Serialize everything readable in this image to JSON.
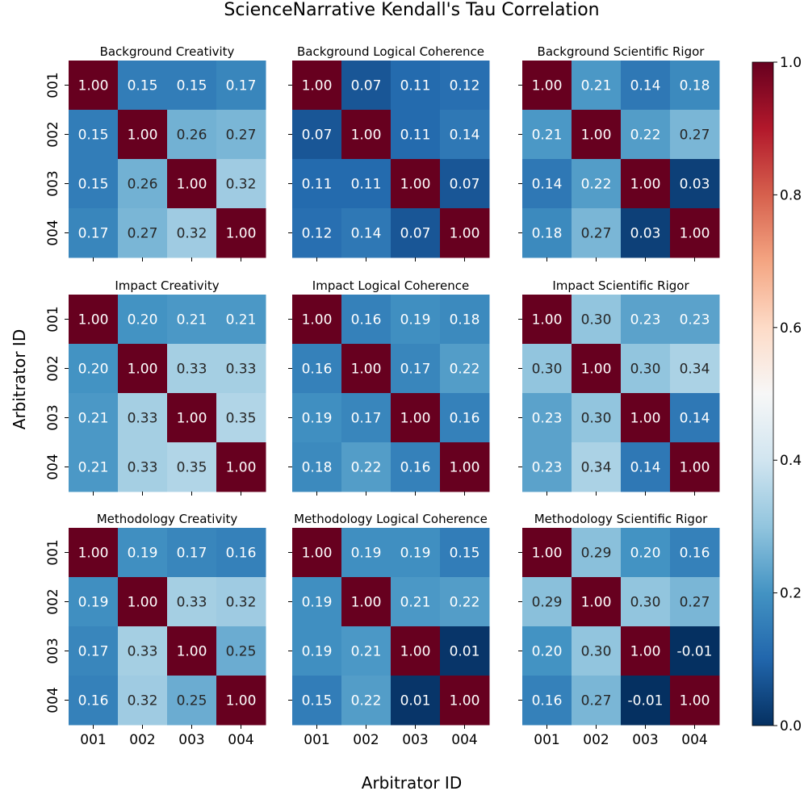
{
  "chart_data": {
    "type": "heatmap",
    "title": "ScienceNarrative Kendall's Tau Correlation",
    "xlabel": "Arbitrator ID",
    "ylabel": "Arbitrator ID",
    "tick_labels": [
      "001",
      "002",
      "003",
      "004"
    ],
    "colorbar": {
      "range": [
        0.0,
        1.0
      ],
      "ticks": [
        "0.0",
        "0.2",
        "0.4",
        "0.6",
        "0.8",
        "1.0"
      ],
      "colormap": "RdBu_r"
    },
    "panels": [
      {
        "title": "Background Creativity",
        "matrix": [
          [
            "1.00",
            "0.15",
            "0.15",
            "0.17"
          ],
          [
            "0.15",
            "1.00",
            "0.26",
            "0.27"
          ],
          [
            "0.15",
            "0.26",
            "1.00",
            "0.32"
          ],
          [
            "0.17",
            "0.27",
            "0.32",
            "1.00"
          ]
        ]
      },
      {
        "title": "Background Logical Coherence",
        "matrix": [
          [
            "1.00",
            "0.07",
            "0.11",
            "0.12"
          ],
          [
            "0.07",
            "1.00",
            "0.11",
            "0.14"
          ],
          [
            "0.11",
            "0.11",
            "1.00",
            "0.07"
          ],
          [
            "0.12",
            "0.14",
            "0.07",
            "1.00"
          ]
        ]
      },
      {
        "title": "Background Scientific Rigor",
        "matrix": [
          [
            "1.00",
            "0.21",
            "0.14",
            "0.18"
          ],
          [
            "0.21",
            "1.00",
            "0.22",
            "0.27"
          ],
          [
            "0.14",
            "0.22",
            "1.00",
            "0.03"
          ],
          [
            "0.18",
            "0.27",
            "0.03",
            "1.00"
          ]
        ]
      },
      {
        "title": "Impact Creativity",
        "matrix": [
          [
            "1.00",
            "0.20",
            "0.21",
            "0.21"
          ],
          [
            "0.20",
            "1.00",
            "0.33",
            "0.33"
          ],
          [
            "0.21",
            "0.33",
            "1.00",
            "0.35"
          ],
          [
            "0.21",
            "0.33",
            "0.35",
            "1.00"
          ]
        ]
      },
      {
        "title": "Impact Logical Coherence",
        "matrix": [
          [
            "1.00",
            "0.16",
            "0.19",
            "0.18"
          ],
          [
            "0.16",
            "1.00",
            "0.17",
            "0.22"
          ],
          [
            "0.19",
            "0.17",
            "1.00",
            "0.16"
          ],
          [
            "0.18",
            "0.22",
            "0.16",
            "1.00"
          ]
        ]
      },
      {
        "title": "Impact Scientific Rigor",
        "matrix": [
          [
            "1.00",
            "0.30",
            "0.23",
            "0.23"
          ],
          [
            "0.30",
            "1.00",
            "0.30",
            "0.34"
          ],
          [
            "0.23",
            "0.30",
            "1.00",
            "0.14"
          ],
          [
            "0.23",
            "0.34",
            "0.14",
            "1.00"
          ]
        ]
      },
      {
        "title": "Methodology Creativity",
        "matrix": [
          [
            "1.00",
            "0.19",
            "0.17",
            "0.16"
          ],
          [
            "0.19",
            "1.00",
            "0.33",
            "0.32"
          ],
          [
            "0.17",
            "0.33",
            "1.00",
            "0.25"
          ],
          [
            "0.16",
            "0.32",
            "0.25",
            "1.00"
          ]
        ]
      },
      {
        "title": "Methodology Logical Coherence",
        "matrix": [
          [
            "1.00",
            "0.19",
            "0.19",
            "0.15"
          ],
          [
            "0.19",
            "1.00",
            "0.21",
            "0.22"
          ],
          [
            "0.19",
            "0.21",
            "1.00",
            "0.01"
          ],
          [
            "0.15",
            "0.22",
            "0.01",
            "1.00"
          ]
        ]
      },
      {
        "title": "Methodology Scientific Rigor",
        "matrix": [
          [
            "1.00",
            "0.29",
            "0.20",
            "0.16"
          ],
          [
            "0.29",
            "1.00",
            "0.30",
            "0.27"
          ],
          [
            "0.20",
            "0.30",
            "1.00",
            "-0.01"
          ],
          [
            "0.16",
            "0.27",
            "-0.01",
            "1.00"
          ]
        ]
      }
    ]
  }
}
